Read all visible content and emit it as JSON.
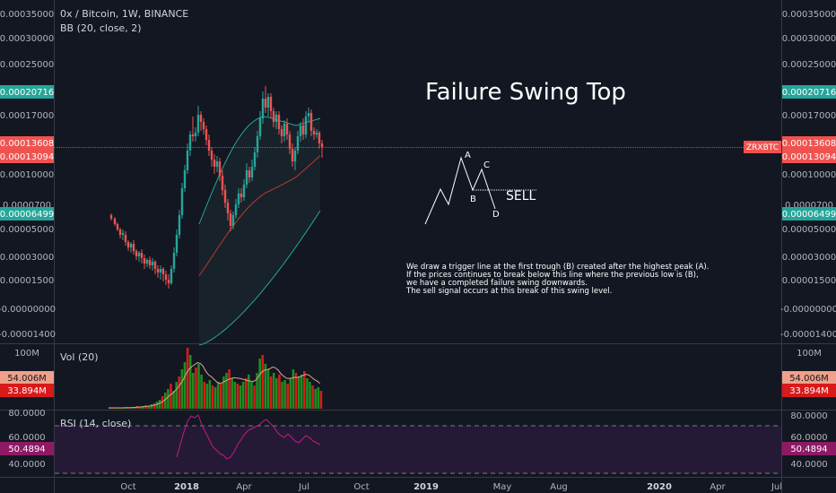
{
  "header": {
    "symbol_line": "0x / Bitcoin, 1W, BINANCE",
    "indicator_bb": "BB (20, close, 2)"
  },
  "price_axis": {
    "ticks": [
      "0.00035000",
      "0.00030000",
      "0.00025000",
      "0.00017000",
      "0.00010000",
      "0.00005000",
      "0.00003000",
      "0.00001500",
      "-0.00000000",
      "-0.00001400"
    ],
    "badge_upper": "0.00020716",
    "badge_last": "0.00013608",
    "badge_basis": "0.00013094",
    "badge_lower": "0.00006499",
    "badge_trunc": "0.0000700",
    "symbol_tag": "ZRXBTC"
  },
  "volume": {
    "label": "Vol (20)",
    "ticks": [
      "100M"
    ],
    "badge_a": "54.006M",
    "badge_b": "33.894M"
  },
  "rsi": {
    "label": "RSI (14, close)",
    "ticks": [
      "80.0000",
      "60.0000",
      "40.0000"
    ],
    "left_ticks": [
      "80.0000",
      "60.0000",
      "40.0000"
    ],
    "badge": "50.4894"
  },
  "time_axis": {
    "labels": [
      "Oct",
      "2018",
      "Apr",
      "Jul",
      "Oct",
      "2019",
      "May",
      "Aug",
      "2020",
      "Apr",
      "Jul"
    ]
  },
  "annotation": {
    "title": "Failure Swing Top",
    "point_a": "A",
    "point_b": "B",
    "point_c": "C",
    "point_d": "D",
    "sell": "SELL",
    "note": [
      "We draw a trigger line at the first trough (B) created after the highest peak (A).",
      "If the prices continues to break below this line where the previous low is (B),",
      "we have a completed failure swing downwards.",
      "The sell signal occurs at this break of this swing level."
    ]
  },
  "colors": {
    "background": "#131722",
    "up": "#26a69a",
    "down": "#ef5350",
    "vol_up": "#1e8c1e",
    "vol_down": "#d91a1a",
    "rsi": "#c11a8a",
    "bb_upper": "#26a69a",
    "bb_basis": "#c0392b",
    "rsi_band": "#251a35"
  }
}
